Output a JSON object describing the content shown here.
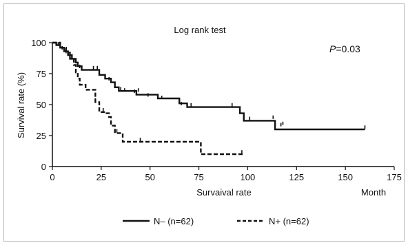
{
  "chart_data": {
    "type": "line",
    "subtype": "kaplan-meier step",
    "title": "Log rank test",
    "annotation": {
      "label": "P",
      "text": "=0.03"
    },
    "xlabel": "Survaival rate",
    "xunit_label": "Month",
    "ylabel": "Survival rate (%)",
    "xlim": [
      0,
      175
    ],
    "ylim": [
      0,
      100
    ],
    "xticks": [
      0,
      25,
      50,
      75,
      100,
      125,
      150,
      175
    ],
    "yticks": [
      0,
      25,
      50,
      75,
      100
    ],
    "grid": false,
    "legend_position": "bottom",
    "series": [
      {
        "name": "N– (n=62)",
        "style": "solid",
        "color": "#111111",
        "steps": [
          [
            0,
            100
          ],
          [
            2,
            98
          ],
          [
            4,
            96
          ],
          [
            6,
            93
          ],
          [
            8,
            90
          ],
          [
            10,
            87
          ],
          [
            12,
            84
          ],
          [
            13,
            81
          ],
          [
            15,
            78
          ],
          [
            22,
            78
          ],
          [
            24,
            74
          ],
          [
            27,
            71
          ],
          [
            30,
            68
          ],
          [
            32,
            64
          ],
          [
            34,
            61
          ],
          [
            40,
            61
          ],
          [
            43,
            58
          ],
          [
            52,
            58
          ],
          [
            54,
            55
          ],
          [
            62,
            55
          ],
          [
            65,
            51
          ],
          [
            69,
            48
          ],
          [
            93,
            48
          ],
          [
            96,
            43
          ],
          [
            98,
            37
          ],
          [
            112,
            37
          ],
          [
            114,
            30
          ],
          [
            160,
            30
          ]
        ],
        "censored": [
          [
            3,
            98
          ],
          [
            5,
            95
          ],
          [
            7,
            92
          ],
          [
            9,
            88
          ],
          [
            14,
            80
          ],
          [
            21,
            79
          ],
          [
            23,
            79
          ],
          [
            29,
            70
          ],
          [
            35,
            62
          ],
          [
            37,
            61
          ],
          [
            42,
            60
          ],
          [
            44,
            61
          ],
          [
            49,
            57
          ],
          [
            56,
            55
          ],
          [
            66,
            50
          ],
          [
            71,
            49
          ],
          [
            92,
            49
          ],
          [
            101,
            38
          ],
          [
            113,
            39
          ],
          [
            117,
            33
          ],
          [
            118,
            34
          ],
          [
            160,
            31
          ]
        ]
      },
      {
        "name": "N+ (n=62)",
        "style": "dashed",
        "color": "#111111",
        "steps": [
          [
            0,
            100
          ],
          [
            4,
            96
          ],
          [
            7,
            92
          ],
          [
            9,
            87
          ],
          [
            11,
            82
          ],
          [
            12,
            76
          ],
          [
            13,
            71
          ],
          [
            14,
            66
          ],
          [
            17,
            62
          ],
          [
            20,
            62
          ],
          [
            22,
            52
          ],
          [
            24,
            44
          ],
          [
            27,
            43
          ],
          [
            29,
            40
          ],
          [
            30,
            33
          ],
          [
            32,
            27
          ],
          [
            35,
            27
          ],
          [
            36,
            20
          ],
          [
            75,
            20
          ],
          [
            76,
            10
          ],
          [
            98,
            10
          ]
        ],
        "censored": [
          [
            3,
            98
          ],
          [
            8,
            91
          ],
          [
            22,
            53
          ],
          [
            26,
            45
          ],
          [
            33,
            28
          ],
          [
            45,
            21
          ],
          [
            97,
            11
          ]
        ]
      }
    ]
  }
}
